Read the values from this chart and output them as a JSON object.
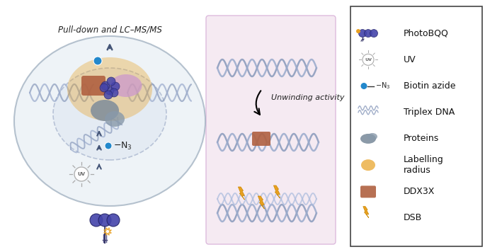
{
  "bg_color": "#ffffff",
  "panel_bg": "#f5e8f0",
  "cell_color": "#dce6f0",
  "cell_edge": "#aabbcc",
  "dna_color": "#8899bb",
  "dna_color2": "#99aacc",
  "photobqq_color": "#4444aa",
  "biotin_color": "#2288cc",
  "labelling_color": "#e8a020",
  "ddx3x_color": "#b06040",
  "protein_color": "#778899",
  "pink_protein": "#cc99cc",
  "arrow_color": "#445577",
  "dsb_color": "#e8a020",
  "legend_items": [
    {
      "icon": "photobqq",
      "label": "PhotoBQQ"
    },
    {
      "icon": "uv",
      "label": "UV"
    },
    {
      "icon": "biotin",
      "label": "Biotin azide"
    },
    {
      "icon": "triplex",
      "label": "Triplex DNA"
    },
    {
      "icon": "protein",
      "label": "Proteins"
    },
    {
      "icon": "labelling",
      "label": "Labelling\nradius"
    },
    {
      "icon": "ddx3x",
      "label": "DDX3X"
    },
    {
      "icon": "dsb",
      "label": "DSB"
    }
  ],
  "bottom_label": "Pull-down and LC–MS/MS",
  "unwinding_label": "Unwinding activity",
  "n3_label": "–N₃",
  "figsize": [
    6.85,
    3.56
  ],
  "dpi": 100
}
